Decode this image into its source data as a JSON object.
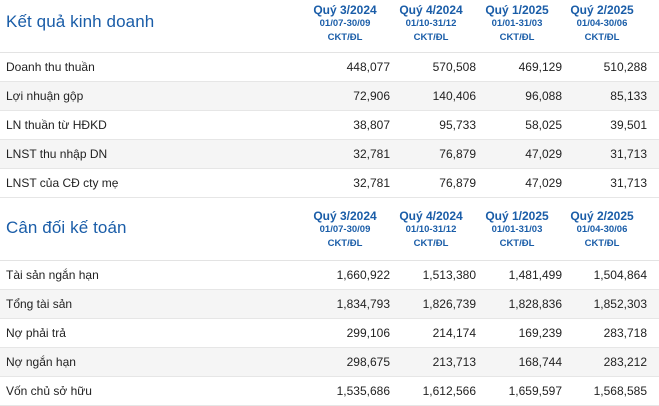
{
  "income": {
    "title": "Kết quả kinh doanh",
    "columns": [
      {
        "quarter": "Quý 3/2024",
        "dates": "01/07-30/09",
        "unit": "CKT/ĐL"
      },
      {
        "quarter": "Quý 4/2024",
        "dates": "01/10-31/12",
        "unit": "CKT/ĐL"
      },
      {
        "quarter": "Quý 1/2025",
        "dates": "01/01-31/03",
        "unit": "CKT/ĐL"
      },
      {
        "quarter": "Quý 2/2025",
        "dates": "01/04-30/06",
        "unit": "CKT/ĐL"
      }
    ],
    "rows": [
      {
        "label": "Doanh thu thuần",
        "values": [
          "448,077",
          "570,508",
          "469,129",
          "510,288"
        ]
      },
      {
        "label": "Lợi nhuận gộp",
        "values": [
          "72,906",
          "140,406",
          "96,088",
          "85,133"
        ]
      },
      {
        "label": "LN thuần từ HĐKD",
        "values": [
          "38,807",
          "95,733",
          "58,025",
          "39,501"
        ]
      },
      {
        "label": "LNST thu nhập DN",
        "values": [
          "32,781",
          "76,879",
          "47,029",
          "31,713"
        ]
      },
      {
        "label": "LNST của CĐ cty mẹ",
        "values": [
          "32,781",
          "76,879",
          "47,029",
          "31,713"
        ]
      }
    ]
  },
  "balance": {
    "title": "Cân đối kế toán",
    "columns": [
      {
        "quarter": "Quý 3/2024",
        "dates": "01/07-30/09",
        "unit": "CKT/ĐL"
      },
      {
        "quarter": "Quý 4/2024",
        "dates": "01/10-31/12",
        "unit": "CKT/ĐL"
      },
      {
        "quarter": "Quý 1/2025",
        "dates": "01/01-31/03",
        "unit": "CKT/ĐL"
      },
      {
        "quarter": "Quý 2/2025",
        "dates": "01/04-30/06",
        "unit": "CKT/ĐL"
      }
    ],
    "rows": [
      {
        "label": "Tài sản ngắn hạn",
        "values": [
          "1,660,922",
          "1,513,380",
          "1,481,499",
          "1,504,864"
        ]
      },
      {
        "label": "Tổng tài sản",
        "values": [
          "1,834,793",
          "1,826,739",
          "1,828,836",
          "1,852,303"
        ]
      },
      {
        "label": "Nợ phải trả",
        "values": [
          "299,106",
          "214,174",
          "169,239",
          "283,718"
        ]
      },
      {
        "label": "Nợ ngắn hạn",
        "values": [
          "298,675",
          "213,713",
          "168,744",
          "283,212"
        ]
      },
      {
        "label": "Vốn chủ sở hữu",
        "values": [
          "1,535,686",
          "1,612,566",
          "1,659,597",
          "1,568,585"
        ]
      }
    ]
  }
}
